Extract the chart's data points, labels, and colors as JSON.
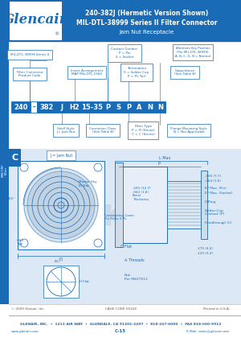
{
  "title_line1": "240-382J (Hermetic Version Shown)",
  "title_line2": "MIL-DTL-38999 Series II Filter Connector",
  "title_line3": "Jam Nut Receptacle",
  "header_bg": "#1a6bb5",
  "logo_text": "Glencair",
  "side_label1": "EMI/CRF",
  "side_label2": "Filter",
  "footer_text1": "GLENAIR, INC.  •  1211 AIR WAY  •  GLENDALE, CA 91201-2497  •  818-247-6000  •  FAX 818-500-9912",
  "footer_text2": "www.glenair.com",
  "footer_text3": "C-15",
  "footer_text4": "E-Mail: sales@glenair.com",
  "footer_copyright": "© 2009 Glenair, Inc.",
  "footer_cage": "CAGE CODE 06324",
  "footer_printed": "Printed in U.S.A.",
  "bg_color": "#ffffff",
  "diagram_bg": "#dce8f5",
  "blue": "#1a6bb5",
  "line_color": "#1a6bb5",
  "watermark_color": "#b8cce0"
}
